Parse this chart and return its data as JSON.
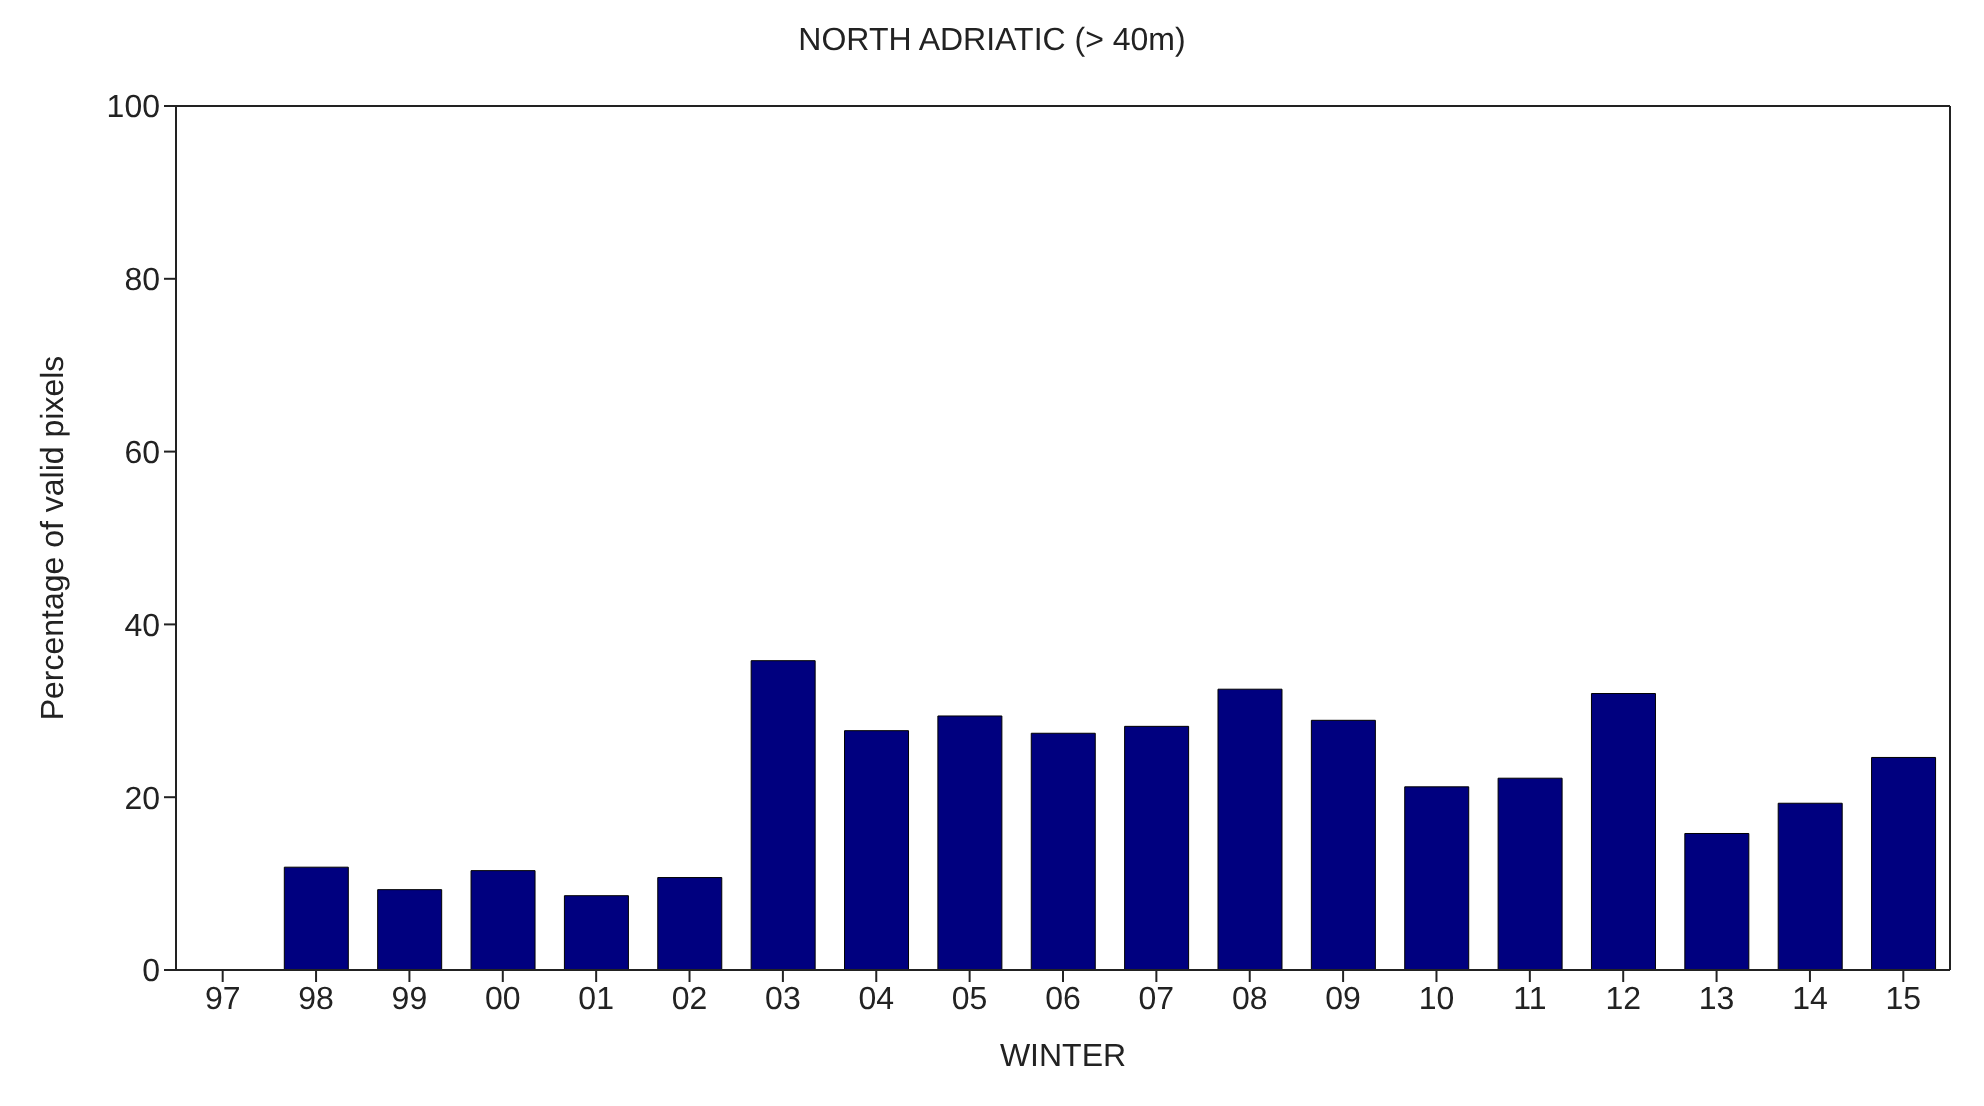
{
  "chart_data": {
    "type": "bar",
    "title": "NORTH ADRIATIC (> 40m)",
    "xlabel": "WINTER",
    "ylabel": "Percentage of valid pixels",
    "categories": [
      "97",
      "98",
      "99",
      "00",
      "01",
      "02",
      "03",
      "04",
      "05",
      "06",
      "07",
      "08",
      "09",
      "10",
      "11",
      "12",
      "13",
      "14",
      "15"
    ],
    "values": [
      null,
      11.9,
      9.3,
      11.5,
      8.6,
      10.7,
      35.8,
      27.7,
      29.4,
      27.4,
      28.2,
      32.5,
      28.9,
      21.2,
      22.2,
      32,
      15.8,
      19.3,
      24.6
    ],
    "color": "#00007f",
    "ylim": [
      0,
      100
    ],
    "yticks": [
      0,
      20,
      40,
      60,
      80,
      100
    ],
    "grid": false
  }
}
